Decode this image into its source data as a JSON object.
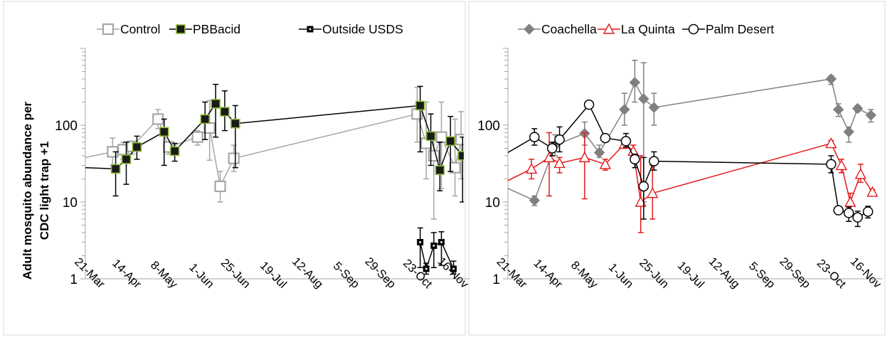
{
  "chart_data": [
    {
      "type": "line",
      "ylabel": "Adult mosquito abundance per CDC light trap +1",
      "ylabel_lines": [
        "Adult mosquito abundance per",
        "CDC light trap +1"
      ],
      "yscale": "log",
      "ylim": [
        1,
        1000
      ],
      "yticks": [
        1,
        10,
        100
      ],
      "ytick_labels": [
        "1",
        "10",
        "100"
      ],
      "xlim": [
        "2013-03-14",
        "2013-11-23"
      ],
      "xticks": [
        "2013-03-21",
        "2013-04-14",
        "2013-05-08",
        "2013-06-01",
        "2013-06-25",
        "2013-07-19",
        "2013-08-12",
        "2013-09-05",
        "2013-09-29",
        "2013-10-23",
        "2013-11-16"
      ],
      "xtick_labels": [
        "21-Mar",
        "14-Apr",
        "8-May",
        "1-Jun",
        "25-Jun",
        "19-Jul",
        "12-Aug",
        "5-Sep",
        "29-Sep",
        "23-Oct",
        "16-Nov"
      ],
      "legend_position": "top",
      "series": [
        {
          "name": "Control",
          "color": "#a6a6a6",
          "marker": "open-square",
          "x": [
            "2013-03-14",
            "2013-04-01",
            "2013-04-08",
            "2013-04-14",
            "2013-05-01",
            "2013-05-08",
            "2013-05-27",
            "2013-06-04",
            "2013-06-11",
            "2013-06-20",
            "2013-10-19",
            "2013-10-25",
            "2013-10-30",
            "2013-11-04",
            "2013-11-13",
            "2013-11-17"
          ],
          "y": [
            38,
            45,
            48,
            53,
            120,
            52,
            70,
            92,
            16,
            37,
            140,
            58,
            40,
            70,
            28,
            65
          ],
          "yerr_high": [
            null,
            68,
            60,
            62,
            160,
            60,
            85,
            210,
            25,
            55,
            310,
            200,
            80,
            200,
            120,
            150
          ],
          "yerr_low": [
            null,
            30,
            36,
            42,
            90,
            42,
            55,
            35,
            10,
            25,
            60,
            20,
            6,
            15,
            12,
            20
          ]
        },
        {
          "name": "PBBacid",
          "color": "#000000",
          "fill": "#1a1a1a",
          "edge": "#8fbc3a",
          "marker": "filled-square",
          "x": [
            "2013-03-14",
            "2013-04-03",
            "2013-04-10",
            "2013-04-17",
            "2013-05-05",
            "2013-05-12",
            "2013-06-01",
            "2013-06-08",
            "2013-06-14",
            "2013-06-21",
            "2013-10-21",
            "2013-10-28",
            "2013-11-03",
            "2013-11-10",
            "2013-11-18"
          ],
          "y": [
            28,
            27,
            36,
            52,
            82,
            46,
            120,
            190,
            150,
            105,
            180,
            72,
            26,
            62,
            40
          ],
          "yerr_high": [
            null,
            45,
            60,
            72,
            120,
            58,
            200,
            340,
            280,
            180,
            320,
            140,
            60,
            130,
            70
          ],
          "yerr_low": [
            null,
            12,
            17,
            36,
            30,
            34,
            65,
            70,
            85,
            28,
            45,
            30,
            14,
            25,
            10
          ]
        },
        {
          "name": "Outside USDS",
          "color": "#000000",
          "fill": "#000000",
          "marker": "dotted-square",
          "x": [
            "2013-10-21",
            "2013-10-25",
            "2013-10-30",
            "2013-11-04",
            "2013-11-12"
          ],
          "y": [
            3,
            1.35,
            2.7,
            3,
            1.35
          ],
          "yerr_high": [
            4.6,
            1.6,
            4.0,
            4.1,
            1.7
          ],
          "yerr_low": [
            1.4,
            1.15,
            1.4,
            1.5,
            1.15
          ]
        }
      ]
    },
    {
      "type": "line",
      "yscale": "log",
      "ylim": [
        1,
        1000
      ],
      "yticks": [
        1,
        10,
        100
      ],
      "ytick_labels": [
        "1",
        "10",
        "100"
      ],
      "xlim": [
        "2013-03-14",
        "2013-11-23"
      ],
      "xticks": [
        "2013-03-21",
        "2013-04-14",
        "2013-05-08",
        "2013-06-01",
        "2013-06-25",
        "2013-07-19",
        "2013-08-12",
        "2013-09-05",
        "2013-09-29",
        "2013-10-23",
        "2013-11-16"
      ],
      "xtick_labels": [
        "21-Mar",
        "14-Apr",
        "8-May",
        "1-Jun",
        "25-Jun",
        "19-Jul",
        "12-Aug",
        "5-Sep",
        "29-Sep",
        "23-Oct",
        "16-Nov"
      ],
      "legend_position": "top",
      "series": [
        {
          "name": "Coachella",
          "color": "#808080",
          "fill": "#808080",
          "marker": "diamond",
          "x": [
            "2013-03-14",
            "2013-04-01",
            "2013-04-15",
            "2013-05-05",
            "2013-05-15",
            "2013-06-01",
            "2013-06-08",
            "2013-06-14",
            "2013-06-21",
            "2013-10-19",
            "2013-10-24",
            "2013-10-31",
            "2013-11-06",
            "2013-11-15"
          ],
          "y": [
            15,
            10.5,
            55,
            78,
            44,
            160,
            360,
            220,
            170,
            400,
            160,
            82,
            165,
            135
          ],
          "yerr_high": [
            null,
            12,
            75,
            110,
            55,
            260,
            700,
            650,
            260,
            440,
            190,
            95,
            180,
            160
          ],
          "yerr_low": [
            null,
            9,
            40,
            55,
            38,
            100,
            200,
            10,
            100,
            340,
            130,
            60,
            150,
            110
          ]
        },
        {
          "name": "La Quinta",
          "color": "#e31a1c",
          "marker": "open-triangle",
          "x": [
            "2013-03-14",
            "2013-03-30",
            "2013-04-11",
            "2013-04-18",
            "2013-05-05",
            "2013-05-19",
            "2013-06-01",
            "2013-06-07",
            "2013-06-12",
            "2013-06-20",
            "2013-10-19",
            "2013-10-26",
            "2013-11-01",
            "2013-11-08",
            "2013-11-16"
          ],
          "y": [
            19,
            27,
            38,
            32,
            38,
            31,
            57,
            46,
            10,
            13,
            58,
            30,
            10,
            23,
            13.5
          ],
          "yerr_high": [
            null,
            36,
            80,
            38,
            80,
            36,
            62,
            55,
            40,
            30,
            63,
            36,
            13,
            31,
            14.5
          ],
          "yerr_low": [
            null,
            20,
            12,
            24,
            11,
            26,
            50,
            40,
            4,
            6,
            52,
            24,
            7,
            18,
            12.5
          ]
        },
        {
          "name": "Palm Desert",
          "color": "#000000",
          "fill": "#ffffff",
          "marker": "open-circle",
          "x": [
            "2013-03-14",
            "2013-04-01",
            "2013-04-13",
            "2013-04-18",
            "2013-05-08",
            "2013-05-19",
            "2013-06-02",
            "2013-06-08",
            "2013-06-14",
            "2013-06-21",
            "2013-10-19",
            "2013-10-24",
            "2013-10-31",
            "2013-11-06",
            "2013-11-13"
          ],
          "y": [
            44,
            70,
            50,
            65,
            185,
            68,
            62,
            36,
            16,
            34,
            31,
            7.8,
            7.2,
            6.3,
            7.5
          ],
          "yerr_high": [
            null,
            90,
            60,
            95,
            190,
            72,
            78,
            42,
            38,
            45,
            40,
            8.2,
            8.6,
            7.6,
            8.8
          ],
          "yerr_low": [
            null,
            55,
            40,
            45,
            180,
            63,
            52,
            28,
            6,
            26,
            24,
            7.4,
            5.6,
            4.8,
            6.2
          ]
        }
      ]
    }
  ]
}
